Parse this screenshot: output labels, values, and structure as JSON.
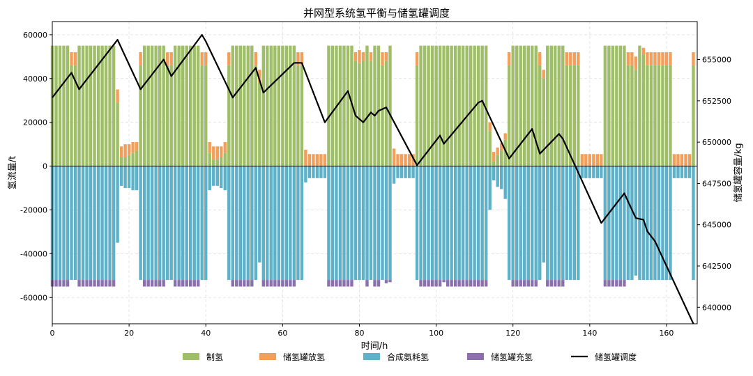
{
  "chart_data": {
    "type": "bar",
    "title": "并网型系统氢平衡与储氢罐调度",
    "xlabel": "时间/h",
    "ylabel": "氢流量/t",
    "y2label": "储氢罐容量/kg",
    "xlim": [
      0,
      168
    ],
    "ylim": [
      -72000,
      66000
    ],
    "y2lim": [
      639000,
      657300
    ],
    "xticks": [
      0,
      20,
      40,
      60,
      80,
      100,
      120,
      140,
      160
    ],
    "yticks": [
      -60000,
      -40000,
      -20000,
      0,
      20000,
      40000,
      60000
    ],
    "y2ticks": [
      640000,
      642500,
      645000,
      647500,
      650000,
      652500,
      655000
    ],
    "grid": true,
    "legend_position": "bottom-center",
    "hours": [
      0,
      1,
      2,
      3,
      4,
      5,
      6,
      7,
      8,
      9,
      10,
      11,
      12,
      13,
      14,
      15,
      16,
      17,
      18,
      19,
      20,
      21,
      22,
      23,
      24,
      25,
      26,
      27,
      28,
      29,
      30,
      31,
      32,
      33,
      34,
      35,
      36,
      37,
      38,
      39,
      40,
      41,
      42,
      43,
      44,
      45,
      46,
      47,
      48,
      49,
      50,
      51,
      52,
      53,
      54,
      55,
      56,
      57,
      58,
      59,
      60,
      61,
      62,
      63,
      64,
      65,
      66,
      67,
      68,
      69,
      70,
      71,
      72,
      73,
      74,
      75,
      76,
      77,
      78,
      79,
      80,
      81,
      82,
      83,
      84,
      85,
      86,
      87,
      88,
      89,
      90,
      91,
      92,
      93,
      94,
      95,
      96,
      97,
      98,
      99,
      100,
      101,
      102,
      103,
      104,
      105,
      106,
      107,
      108,
      109,
      110,
      111,
      112,
      113,
      114,
      115,
      116,
      117,
      118,
      119,
      120,
      121,
      122,
      123,
      124,
      125,
      126,
      127,
      128,
      129,
      130,
      131,
      132,
      133,
      134,
      135,
      136,
      137,
      138,
      139,
      140,
      141,
      142,
      143,
      144,
      145,
      146,
      147,
      148,
      149,
      150,
      151,
      152,
      153,
      154,
      155,
      156,
      157,
      158,
      159,
      160,
      161,
      162,
      163,
      164,
      165,
      166,
      167
    ],
    "series": [
      {
        "name": "制氢",
        "color": "#9fbe68",
        "kind": "bar",
        "values": [
          55000,
          55000,
          55000,
          55000,
          55000,
          46000,
          46000,
          55000,
          55000,
          55000,
          55000,
          55000,
          55000,
          55000,
          55000,
          55000,
          55000,
          29000,
          4000,
          4000,
          5000,
          6000,
          7000,
          46000,
          55000,
          55000,
          55000,
          55000,
          55000,
          55000,
          46000,
          46000,
          55000,
          55000,
          55000,
          55000,
          55000,
          55000,
          55000,
          46000,
          46000,
          6000,
          3000,
          3000,
          4000,
          6000,
          46000,
          55000,
          55000,
          55000,
          55000,
          55000,
          55000,
          46000,
          38000,
          55000,
          55000,
          55000,
          55000,
          55000,
          55000,
          55000,
          55000,
          55000,
          46000,
          46000,
          0,
          0,
          0,
          0,
          0,
          0,
          55000,
          55000,
          55000,
          55000,
          55000,
          55000,
          55000,
          48000,
          47000,
          48000,
          55000,
          48000,
          55000,
          55000,
          46000,
          48000,
          55000,
          0,
          0,
          0,
          0,
          0,
          0,
          46000,
          55000,
          55000,
          55000,
          55000,
          55000,
          55000,
          55000,
          55000,
          55000,
          55000,
          55000,
          55000,
          55000,
          55000,
          55000,
          55000,
          55000,
          55000,
          16000,
          2000,
          5000,
          7000,
          12000,
          46000,
          55000,
          55000,
          55000,
          55000,
          55000,
          55000,
          55000,
          46000,
          40000,
          55000,
          55000,
          55000,
          55000,
          55000,
          46000,
          46000,
          46000,
          46000,
          0,
          0,
          0,
          0,
          0,
          0,
          55000,
          55000,
          55000,
          55000,
          55000,
          55000,
          46000,
          46000,
          44000,
          55000,
          51000,
          46000,
          46000,
          46000,
          46000,
          46000,
          46000,
          46000,
          0,
          0,
          0,
          0,
          0,
          46000
        ]
      },
      {
        "name": "储氢罐放氢",
        "color": "#f39f5c",
        "kind": "bar",
        "values": [
          0,
          0,
          0,
          0,
          0,
          6000,
          6000,
          0,
          0,
          0,
          0,
          0,
          0,
          0,
          0,
          0,
          0,
          6000,
          5000,
          6000,
          5000,
          5000,
          4000,
          6000,
          0,
          0,
          0,
          0,
          0,
          0,
          6000,
          6000,
          0,
          0,
          0,
          0,
          0,
          0,
          0,
          6000,
          6000,
          5000,
          6000,
          6000,
          5000,
          5000,
          6000,
          0,
          0,
          0,
          0,
          0,
          0,
          6000,
          6000,
          0,
          0,
          0,
          0,
          0,
          0,
          0,
          0,
          0,
          6000,
          6000,
          7500,
          5500,
          5500,
          5500,
          5500,
          5500,
          0,
          0,
          0,
          0,
          0,
          0,
          0,
          4000,
          6000,
          4000,
          0,
          4000,
          0,
          0,
          6000,
          4000,
          0,
          8000,
          5500,
          5500,
          5500,
          5500,
          5500,
          6000,
          0,
          0,
          0,
          0,
          0,
          0,
          0,
          0,
          0,
          0,
          0,
          0,
          0,
          0,
          0,
          0,
          0,
          0,
          4000,
          4500,
          3500,
          3500,
          3000,
          6000,
          0,
          0,
          0,
          0,
          0,
          0,
          0,
          6000,
          4000,
          0,
          0,
          0,
          0,
          0,
          6000,
          6000,
          6000,
          6000,
          5500,
          5500,
          5500,
          5500,
          5500,
          5500,
          0,
          0,
          0,
          0,
          0,
          0,
          6000,
          6000,
          6000,
          0,
          3000,
          6000,
          6000,
          6000,
          6000,
          6000,
          6000,
          6000,
          5500,
          5500,
          5500,
          5500,
          5500,
          6000
        ]
      },
      {
        "name": "合成氨耗氢",
        "color": "#5eb1c9",
        "kind": "bar",
        "values": [
          -52000,
          -52000,
          -52000,
          -52000,
          -52000,
          -52000,
          -52000,
          -52000,
          -52000,
          -52000,
          -52000,
          -52000,
          -52000,
          -52000,
          -52000,
          -52000,
          -52000,
          -35000,
          -9000,
          -10000,
          -10000,
          -11000,
          -11000,
          -52000,
          -52000,
          -52000,
          -52000,
          -52000,
          -52000,
          -52000,
          -52000,
          -52000,
          -52000,
          -52000,
          -52000,
          -52000,
          -52000,
          -52000,
          -52000,
          -52000,
          -52000,
          -11000,
          -9000,
          -9000,
          -10000,
          -11000,
          -52000,
          -52000,
          -52000,
          -52000,
          -52000,
          -52000,
          -52000,
          -52000,
          -44000,
          -52000,
          -52000,
          -52000,
          -52000,
          -52000,
          -52000,
          -52000,
          -52000,
          -52000,
          -52000,
          -52000,
          -7500,
          -5500,
          -5500,
          -5500,
          -5500,
          -5500,
          -52000,
          -52000,
          -52000,
          -52000,
          -52000,
          -52000,
          -52000,
          -52000,
          -52000,
          -52000,
          -52000,
          -52000,
          -52000,
          -52000,
          -52000,
          -52000,
          -52000,
          -8000,
          -5500,
          -5500,
          -5500,
          -5500,
          -5500,
          -52000,
          -52000,
          -52000,
          -52000,
          -52000,
          -52000,
          -52000,
          -52000,
          -52000,
          -52000,
          -52000,
          -52000,
          -52000,
          -52000,
          -52000,
          -52000,
          -52000,
          -52000,
          -52000,
          -20000,
          -6500,
          -9500,
          -10500,
          -15000,
          -52000,
          -52000,
          -52000,
          -52000,
          -52000,
          -52000,
          -52000,
          -52000,
          -52000,
          -44000,
          -52000,
          -52000,
          -52000,
          -52000,
          -52000,
          -52000,
          -52000,
          -52000,
          -52000,
          -5500,
          -5500,
          -5500,
          -5500,
          -5500,
          -5500,
          -52000,
          -52000,
          -52000,
          -52000,
          -52000,
          -52000,
          -52000,
          -52000,
          -50000,
          -52000,
          -52000,
          -52000,
          -52000,
          -52000,
          -52000,
          -52000,
          -52000,
          -52000,
          -5500,
          -5500,
          -5500,
          -5500,
          -5500,
          -52000
        ]
      },
      {
        "name": "储氢罐充氢",
        "color": "#8d6fad",
        "kind": "bar",
        "values": [
          -3000,
          -3000,
          -3000,
          -3000,
          -3000,
          0,
          0,
          -3000,
          -3000,
          -3000,
          -3000,
          -3000,
          -3000,
          -3000,
          -3000,
          -3000,
          -3000,
          0,
          0,
          0,
          0,
          0,
          0,
          0,
          -3000,
          -3000,
          -3000,
          -3000,
          -3000,
          -3000,
          0,
          0,
          -3000,
          -3000,
          -3000,
          -3000,
          -3000,
          -3000,
          -3000,
          0,
          0,
          0,
          0,
          0,
          0,
          0,
          0,
          -3000,
          -3000,
          -3000,
          -3000,
          -3000,
          -3000,
          0,
          0,
          -3000,
          -3000,
          -3000,
          -3000,
          -3000,
          -3000,
          -3000,
          -3000,
          -3000,
          0,
          0,
          0,
          0,
          0,
          0,
          0,
          0,
          -3000,
          -3000,
          -3000,
          -3000,
          -3000,
          -3000,
          -3000,
          0,
          0,
          0,
          -3000,
          0,
          -3000,
          -3000,
          0,
          -1500,
          -1000,
          0,
          0,
          0,
          0,
          0,
          0,
          0,
          -3000,
          -3000,
          -3000,
          -3000,
          -3000,
          -3000,
          -1000,
          -3000,
          -3000,
          -3000,
          -3000,
          -3000,
          -3000,
          -3000,
          -3000,
          -3000,
          -3000,
          -3000,
          0,
          0,
          0,
          0,
          0,
          0,
          -3000,
          -3000,
          -3000,
          -3000,
          -3000,
          -3000,
          -3000,
          0,
          0,
          -3000,
          -3000,
          -3000,
          -3000,
          -3000,
          0,
          0,
          0,
          0,
          0,
          0,
          0,
          0,
          0,
          0,
          -3000,
          -3000,
          -3000,
          -3000,
          -3000,
          -3000,
          0,
          0,
          0,
          0,
          0,
          0,
          0,
          0,
          0,
          0,
          0,
          0,
          0,
          0,
          0,
          0,
          0,
          0
        ]
      },
      {
        "name": "储氢罐调度",
        "color": "#000000",
        "kind": "line",
        "axis": "right",
        "x": [
          0,
          5,
          7,
          17,
          23,
          29,
          31,
          39,
          40,
          47,
          53,
          55,
          63,
          65,
          71,
          77,
          79,
          81,
          83,
          84,
          85,
          87,
          95,
          101,
          102,
          111,
          112,
          119,
          125,
          127,
          132,
          133,
          143,
          149,
          152,
          154,
          155,
          157,
          167
        ],
        "values": [
          652700,
          654200,
          653200,
          656200,
          653200,
          655000,
          654000,
          656500,
          656100,
          652700,
          654500,
          653000,
          654800,
          654800,
          651200,
          653100,
          651600,
          651200,
          651800,
          651600,
          651900,
          652100,
          648600,
          650400,
          649900,
          652400,
          652500,
          649000,
          650800,
          649300,
          650500,
          650200,
          645100,
          646900,
          645400,
          645300,
          644600,
          644000,
          639000
        ]
      }
    ]
  }
}
